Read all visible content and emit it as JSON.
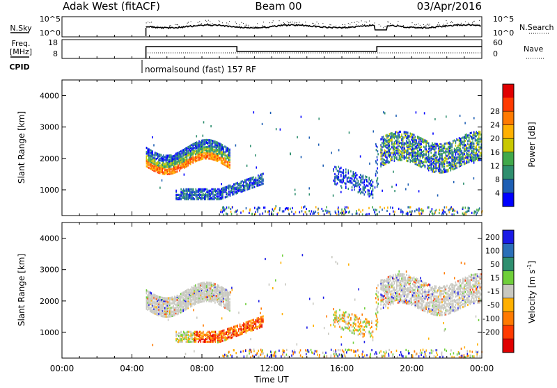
{
  "header": {
    "station": "Adak West (fitACF)",
    "beam": "Beam 00",
    "date": "03/Apr/2016"
  },
  "panels": {
    "nsky": {
      "left_label": "N.Sky",
      "ticks_left": [
        "10^5",
        "10^0"
      ],
      "ticks_right": [
        "10^5",
        "10^0"
      ],
      "right_label": "N.Search"
    },
    "freq": {
      "left_label_line1": "Freq.",
      "left_label_line2": "[MHz]",
      "ticks_left": [
        "18",
        "8"
      ],
      "ticks_right": [
        "60",
        "0"
      ],
      "right_label": "Nave"
    },
    "cpid": {
      "label": "CPID",
      "mode_text": "normalsound (fast) 157 RF"
    }
  },
  "chart_data": [
    {
      "type": "heatmap",
      "title": "",
      "xlabel": "",
      "ylabel": "Slant Range [km]",
      "x_range": [
        "00:00",
        "24:00"
      ],
      "ylim": [
        180,
        4500
      ],
      "yticks": [
        "1000",
        "2000",
        "3000",
        "4000"
      ],
      "colorbar": {
        "label": "Power [dB]",
        "ticks": [
          "4",
          "8",
          "12",
          "16",
          "20",
          "24",
          "28"
        ],
        "range": [
          0,
          30
        ],
        "colors": [
          "#0000ff",
          "#1e5fb4",
          "#2f8f6f",
          "#41a94b",
          "#c9c800",
          "#ffb000",
          "#ff7a00",
          "#ff3a00",
          "#e00000"
        ]
      },
      "features": [
        {
          "x_hours": [
            4.8,
            9.6
          ],
          "range_km": [
            1700,
            2400
          ],
          "level": "high"
        },
        {
          "x_hours": [
            6.5,
            11.5
          ],
          "range_km": [
            700,
            1400
          ],
          "level": "low"
        },
        {
          "x_hours": [
            15.5,
            17.8
          ],
          "range_km": [
            1000,
            1900
          ],
          "level": "low"
        },
        {
          "x_hours": [
            18.2,
            24.0
          ],
          "range_km": [
            1600,
            2800
          ],
          "level": "medium"
        }
      ]
    },
    {
      "type": "heatmap",
      "title": "",
      "xlabel": "Time UT",
      "ylabel": "Slant Range [km]",
      "x_range": [
        "00:00",
        "24:00"
      ],
      "xticks": [
        "00:00",
        "04:00",
        "08:00",
        "12:00",
        "16:00",
        "20:00",
        "00:00"
      ],
      "ylim": [
        180,
        4500
      ],
      "yticks": [
        "1000",
        "2000",
        "3000",
        "4000"
      ],
      "colorbar": {
        "label": "Velocity [m s^-1]",
        "ticks": [
          "200",
          "100",
          "50",
          "15",
          "-15",
          "-50",
          "-100",
          "-200"
        ],
        "range": [
          -250,
          250
        ],
        "colors": [
          "#1a1ae6",
          "#2b6fb8",
          "#2f8f6f",
          "#6fcf3a",
          "#c8c8c0",
          "#ffb000",
          "#ff7a00",
          "#ff3a00",
          "#e00000"
        ]
      },
      "features": [
        {
          "x_hours": [
            4.8,
            9.6
          ],
          "range_km": [
            1700,
            2400
          ],
          "velocity": "near-zero"
        },
        {
          "x_hours": [
            6.5,
            11.5
          ],
          "range_km": [
            700,
            1400
          ],
          "velocity": "negative"
        },
        {
          "x_hours": [
            15.5,
            17.8
          ],
          "range_km": [
            1000,
            1900
          ],
          "velocity": "mixed"
        },
        {
          "x_hours": [
            18.2,
            24.0
          ],
          "range_km": [
            1600,
            2800
          ],
          "velocity": "near-zero"
        }
      ]
    }
  ]
}
